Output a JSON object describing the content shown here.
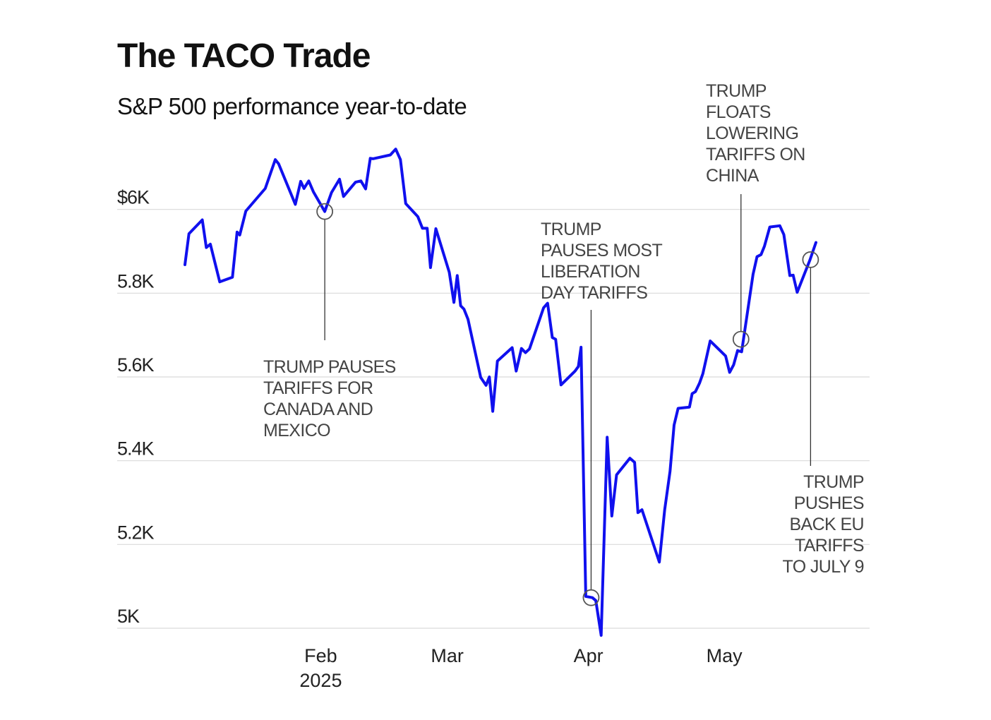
{
  "header": {
    "title": "The TACO Trade",
    "subtitle": "S&P 500 performance year-to-date"
  },
  "colors": {
    "line": "#1010ee",
    "grid": "#d9d9d9",
    "marker": "#555555"
  },
  "chart_data": {
    "type": "line",
    "title": "The TACO Trade",
    "subtitle": "S&P 500 performance year-to-date",
    "xlabel": "",
    "ylabel": "",
    "ylim": [
      5000,
      6200
    ],
    "xlim": [
      0,
      1000
    ],
    "grid": true,
    "y_ticks": [
      {
        "value": 6000,
        "label": "$6K"
      },
      {
        "value": 5800,
        "label": "5.8K"
      },
      {
        "value": 5600,
        "label": "5.6K"
      },
      {
        "value": 5400,
        "label": "5.4K"
      },
      {
        "value": 5200,
        "label": "5.2K"
      },
      {
        "value": 5000,
        "label": "5K"
      }
    ],
    "x_ticks": [
      {
        "value": 203,
        "label": "Feb",
        "sublabel": "2025"
      },
      {
        "value": 392,
        "label": "Mar",
        "sublabel": ""
      },
      {
        "value": 603,
        "label": "Apr",
        "sublabel": ""
      },
      {
        "value": 806,
        "label": "May",
        "sublabel": ""
      }
    ],
    "series": [
      {
        "name": "S&P 500",
        "points": [
          [
            0,
            5868
          ],
          [
            6,
            5942
          ],
          [
            26,
            5975
          ],
          [
            32,
            5909
          ],
          [
            38,
            5917
          ],
          [
            52,
            5827
          ],
          [
            71,
            5838
          ],
          [
            78,
            5946
          ],
          [
            82,
            5939
          ],
          [
            91,
            5996
          ],
          [
            120,
            6050
          ],
          [
            135,
            6119
          ],
          [
            140,
            6109
          ],
          [
            165,
            6012
          ],
          [
            173,
            6067
          ],
          [
            178,
            6050
          ],
          [
            185,
            6068
          ],
          [
            192,
            6042
          ],
          [
            209,
            5995
          ],
          [
            219,
            6040
          ],
          [
            231,
            6072
          ],
          [
            237,
            6031
          ],
          [
            255,
            6065
          ],
          [
            263,
            6068
          ],
          [
            270,
            6049
          ],
          [
            277,
            6122
          ],
          [
            281,
            6121
          ],
          [
            307,
            6130
          ],
          [
            315,
            6144
          ],
          [
            322,
            6119
          ],
          [
            330,
            6014
          ],
          [
            348,
            5983
          ],
          [
            355,
            5955
          ],
          [
            362,
            5955
          ],
          [
            367,
            5861
          ],
          [
            375,
            5954
          ],
          [
            395,
            5850
          ],
          [
            402,
            5778
          ],
          [
            407,
            5842
          ],
          [
            412,
            5770
          ],
          [
            417,
            5762
          ],
          [
            423,
            5738
          ],
          [
            442,
            5599
          ],
          [
            450,
            5580
          ],
          [
            455,
            5600
          ],
          [
            460,
            5518
          ],
          [
            467,
            5638
          ],
          [
            489,
            5670
          ],
          [
            495,
            5614
          ],
          [
            503,
            5668
          ],
          [
            509,
            5658
          ],
          [
            515,
            5667
          ],
          [
            536,
            5765
          ],
          [
            542,
            5776
          ],
          [
            549,
            5694
          ],
          [
            554,
            5690
          ],
          [
            562,
            5581
          ],
          [
            583,
            5614
          ],
          [
            588,
            5625
          ],
          [
            592,
            5671
          ],
          [
            599,
            5076
          ],
          [
            609,
            5073
          ],
          [
            614,
            5066
          ],
          [
            622,
            4983
          ],
          [
            631,
            5456
          ],
          [
            638,
            5268
          ],
          [
            645,
            5366
          ],
          [
            665,
            5406
          ],
          [
            672,
            5396
          ],
          [
            677,
            5276
          ],
          [
            683,
            5283
          ],
          [
            709,
            5158
          ],
          [
            717,
            5283
          ],
          [
            725,
            5375
          ],
          [
            731,
            5485
          ],
          [
            737,
            5525
          ],
          [
            754,
            5528
          ],
          [
            758,
            5560
          ],
          [
            763,
            5565
          ],
          [
            769,
            5585
          ],
          [
            774,
            5608
          ],
          [
            785,
            5686
          ],
          [
            808,
            5650
          ],
          [
            814,
            5611
          ],
          [
            820,
            5629
          ],
          [
            826,
            5663
          ],
          [
            832,
            5660
          ],
          [
            849,
            5845
          ],
          [
            855,
            5887
          ],
          [
            861,
            5892
          ],
          [
            866,
            5912
          ],
          [
            874,
            5958
          ],
          [
            889,
            5961
          ],
          [
            895,
            5940
          ],
          [
            904,
            5842
          ],
          [
            909,
            5843
          ],
          [
            915,
            5802
          ],
          [
            934,
            5879
          ],
          [
            943,
            5921
          ]
        ]
      }
    ],
    "annotations": [
      {
        "text": "TRUMP PAUSES TARIFFS FOR CANADA AND MEXICO",
        "x": 209,
        "y": 5995,
        "lines": [
          "TRUMP PAUSES",
          "TARIFFS FOR",
          "CANADA AND",
          "MEXICO"
        ]
      },
      {
        "text": "TRUMP PAUSES MOST LIBERATION DAY TARIFFS",
        "x": 607,
        "y": 5073,
        "lines": [
          "TRUMP",
          "PAUSES MOST",
          "LIBERATION",
          "DAY TARIFFS"
        ]
      },
      {
        "text": "TRUMP FLOATS LOWERING TARIFFS ON CHINA",
        "x": 831,
        "y": 5690,
        "lines": [
          "TRUMP",
          "FLOATS",
          "LOWERING",
          "TARIFFS ON",
          "CHINA"
        ]
      },
      {
        "text": "TRUMP PUSHES BACK EU TARIFFS TO JULY 9",
        "x": 935,
        "y": 5880,
        "lines": [
          "TRUMP",
          "PUSHES",
          "BACK EU",
          "TARIFFS",
          "TO JULY 9"
        ]
      }
    ]
  }
}
